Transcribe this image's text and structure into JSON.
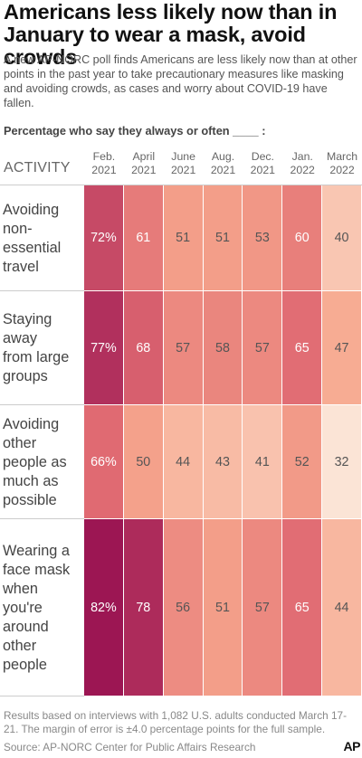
{
  "title": "Americans less likely now than in January to wear a mask, avoid crowds",
  "subtitle": "A new AP-NORC poll finds Americans are less likely now than at other points in the past year to take precautionary measures like masking and avoiding crowds, as cases and worry about COVID-19 have fallen.",
  "question_label": "Percentage who say they always or often ____ :",
  "footnote": "Results based on interviews with 1,082 U.S. adults conducted March 17-21. The margin of error is ±4.0 percentage points for the full sample.",
  "source": "Source: AP-NORC Center for Public Affairs Research",
  "logo_text": "AP",
  "colors": {
    "scale": [
      "#fcecdf",
      "#f7a88e",
      "#e06a72",
      "#930b4f"
    ]
  },
  "chart_data": {
    "type": "heatmap",
    "row_header": "ACTIVITY",
    "columns": [
      [
        "Feb.",
        "2021"
      ],
      [
        "April",
        "2021"
      ],
      [
        "June",
        "2021"
      ],
      [
        "Aug.",
        "2021"
      ],
      [
        "Dec.",
        "2021"
      ],
      [
        "Jan.",
        "2022"
      ],
      [
        "March",
        "2022"
      ]
    ],
    "rows": [
      {
        "label": "Avoiding non-essential travel",
        "label_lines": [
          "Avoiding",
          "non-",
          "essential",
          "travel"
        ],
        "values": [
          72,
          61,
          51,
          51,
          53,
          60,
          40
        ],
        "value_labels": [
          "72%",
          "61",
          "51",
          "51",
          "53",
          "60",
          "40"
        ]
      },
      {
        "label": "Staying away from large groups",
        "label_lines": [
          "Staying",
          "away",
          "from large",
          "groups"
        ],
        "values": [
          77,
          68,
          57,
          58,
          57,
          65,
          47
        ],
        "value_labels": [
          "77%",
          "68",
          "57",
          "58",
          "57",
          "65",
          "47"
        ]
      },
      {
        "label": "Avoiding other people as much as possible",
        "label_lines": [
          "Avoiding",
          "other",
          "people as",
          "much as",
          "possible"
        ],
        "values": [
          66,
          50,
          44,
          43,
          41,
          52,
          32
        ],
        "value_labels": [
          "66%",
          "50",
          "44",
          "43",
          "41",
          "52",
          "32"
        ]
      },
      {
        "label": "Wearing a face mask when you're around other people",
        "label_lines": [
          "Wearing a",
          "face mask",
          "when",
          "you're",
          "around",
          "other",
          "people"
        ],
        "values": [
          82,
          78,
          56,
          51,
          57,
          65,
          44
        ],
        "value_labels": [
          "82%",
          "78",
          "56",
          "51",
          "57",
          "65",
          "44"
        ]
      }
    ]
  }
}
